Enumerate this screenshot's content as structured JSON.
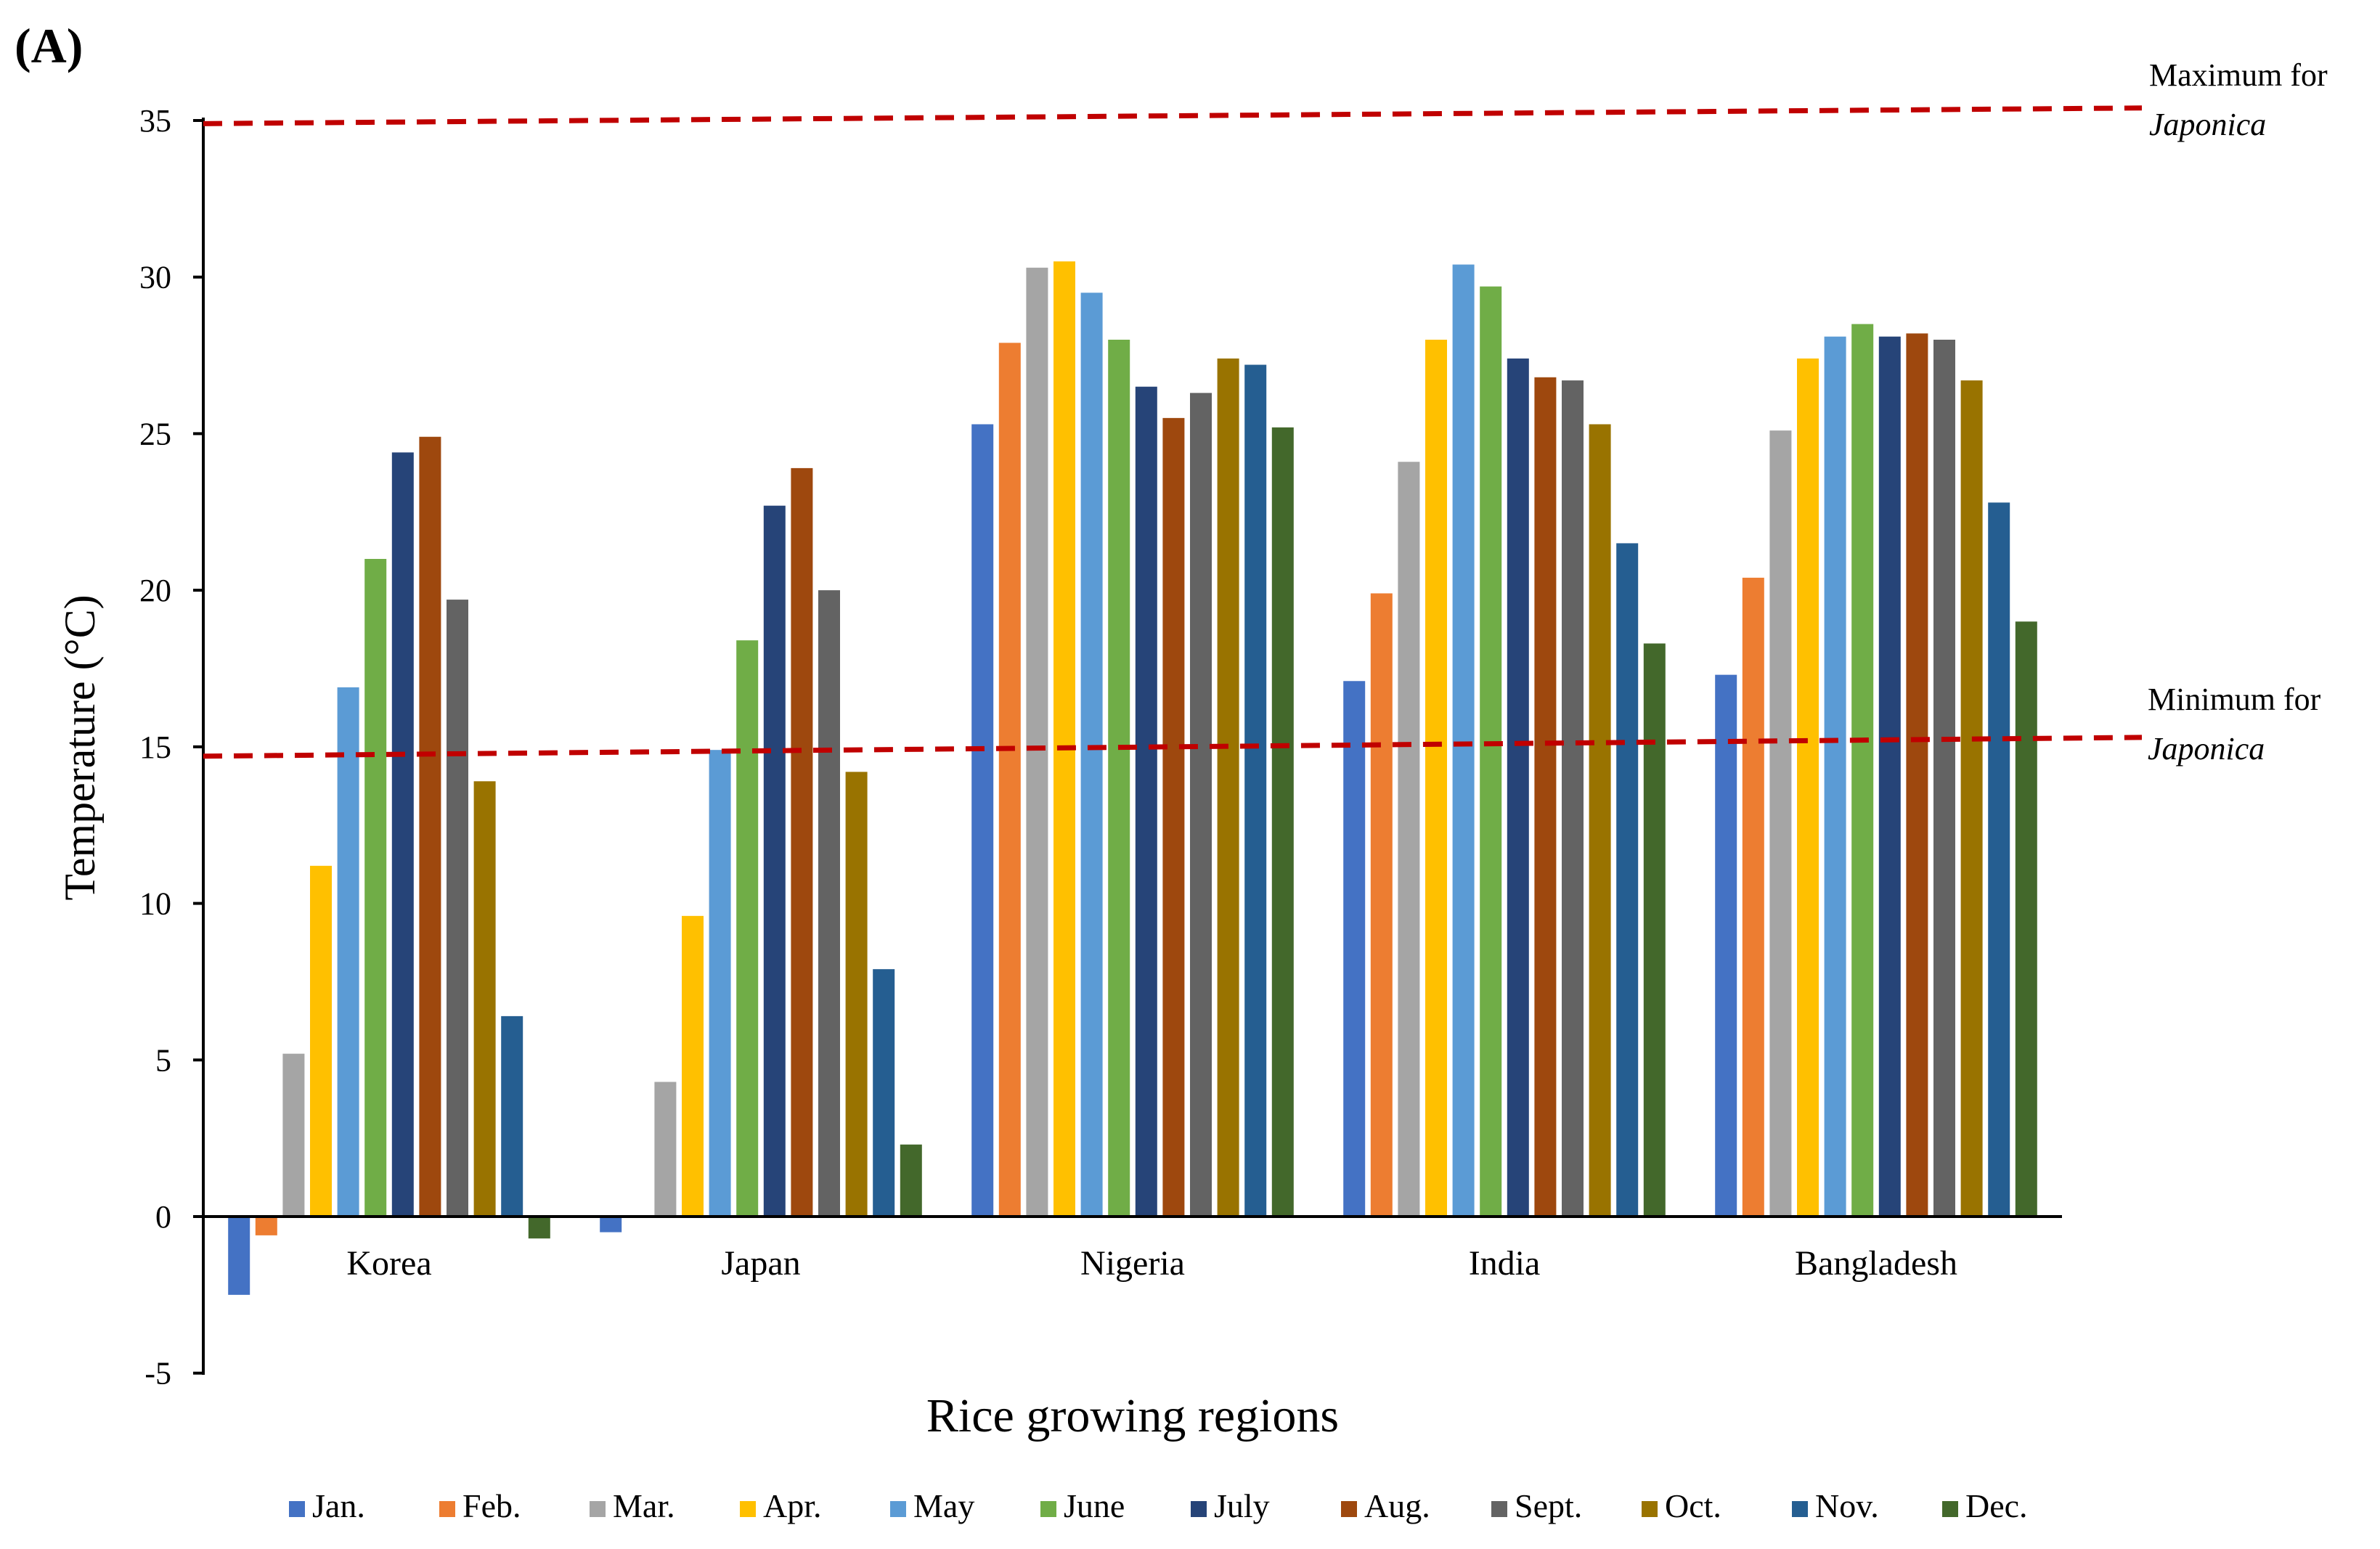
{
  "panel_label": "(A)",
  "colors": {
    "Jan.": "#4472C4",
    "Feb.": "#ED7D31",
    "Mar.": "#A5A5A5",
    "Apr.": "#FFC000",
    "May": "#5B9BD5",
    "June": "#70AD47",
    "July": "#264478",
    "Aug.": "#9E480E",
    "Sept.": "#636363",
    "Oct.": "#997300",
    "Nov.": "#255E91",
    "Dec.": "#43682B",
    "threshold": "#C00000"
  },
  "annotations": {
    "max_line1": "Maximum for",
    "max_line2": "Japonica",
    "min_line1": "Minimum for",
    "min_line2": "Japonica"
  },
  "chart_data": {
    "type": "bar",
    "title": "",
    "xlabel": "Rice growing regions",
    "ylabel": "Temperature (°C)",
    "ylim": [
      -5,
      35
    ],
    "yticks": [
      -5,
      0,
      5,
      10,
      15,
      20,
      25,
      30,
      35
    ],
    "grid": false,
    "legend_position": "bottom",
    "categories": [
      "Korea",
      "Japan",
      "Nigeria",
      "India",
      "Bangladesh"
    ],
    "series": [
      {
        "name": "Jan.",
        "values": [
          -2.5,
          -0.5,
          25.3,
          17.1,
          17.3
        ]
      },
      {
        "name": "Feb.",
        "values": [
          -0.6,
          0.0,
          27.9,
          19.9,
          20.4
        ]
      },
      {
        "name": "Mar.",
        "values": [
          5.2,
          4.3,
          30.3,
          24.1,
          25.1
        ]
      },
      {
        "name": "Apr.",
        "values": [
          11.2,
          9.6,
          30.5,
          28.0,
          27.4
        ]
      },
      {
        "name": "May",
        "values": [
          16.9,
          14.9,
          29.5,
          30.4,
          28.1
        ]
      },
      {
        "name": "June",
        "values": [
          21.0,
          18.4,
          28.0,
          29.7,
          28.5
        ]
      },
      {
        "name": "July",
        "values": [
          24.4,
          22.7,
          26.5,
          27.4,
          28.1
        ]
      },
      {
        "name": "Aug.",
        "values": [
          24.9,
          23.9,
          25.5,
          26.8,
          28.2
        ]
      },
      {
        "name": "Sept.",
        "values": [
          19.7,
          20.0,
          26.3,
          26.7,
          28.0
        ]
      },
      {
        "name": "Oct.",
        "values": [
          13.9,
          14.2,
          27.4,
          25.3,
          26.7
        ]
      },
      {
        "name": "Nov.",
        "values": [
          6.4,
          7.9,
          27.2,
          21.5,
          22.8
        ]
      },
      {
        "name": "Dec.",
        "values": [
          -0.7,
          2.3,
          25.2,
          18.3,
          19.0
        ]
      }
    ],
    "reference_lines": [
      {
        "name": "Maximum for Japonica",
        "y_start": 34.9,
        "y_end": 35.4,
        "x_end": "beyond plot"
      },
      {
        "name": "Minimum for Japonica",
        "y_start": 14.7,
        "y_end": 15.3,
        "x_end": "beyond plot"
      }
    ]
  }
}
